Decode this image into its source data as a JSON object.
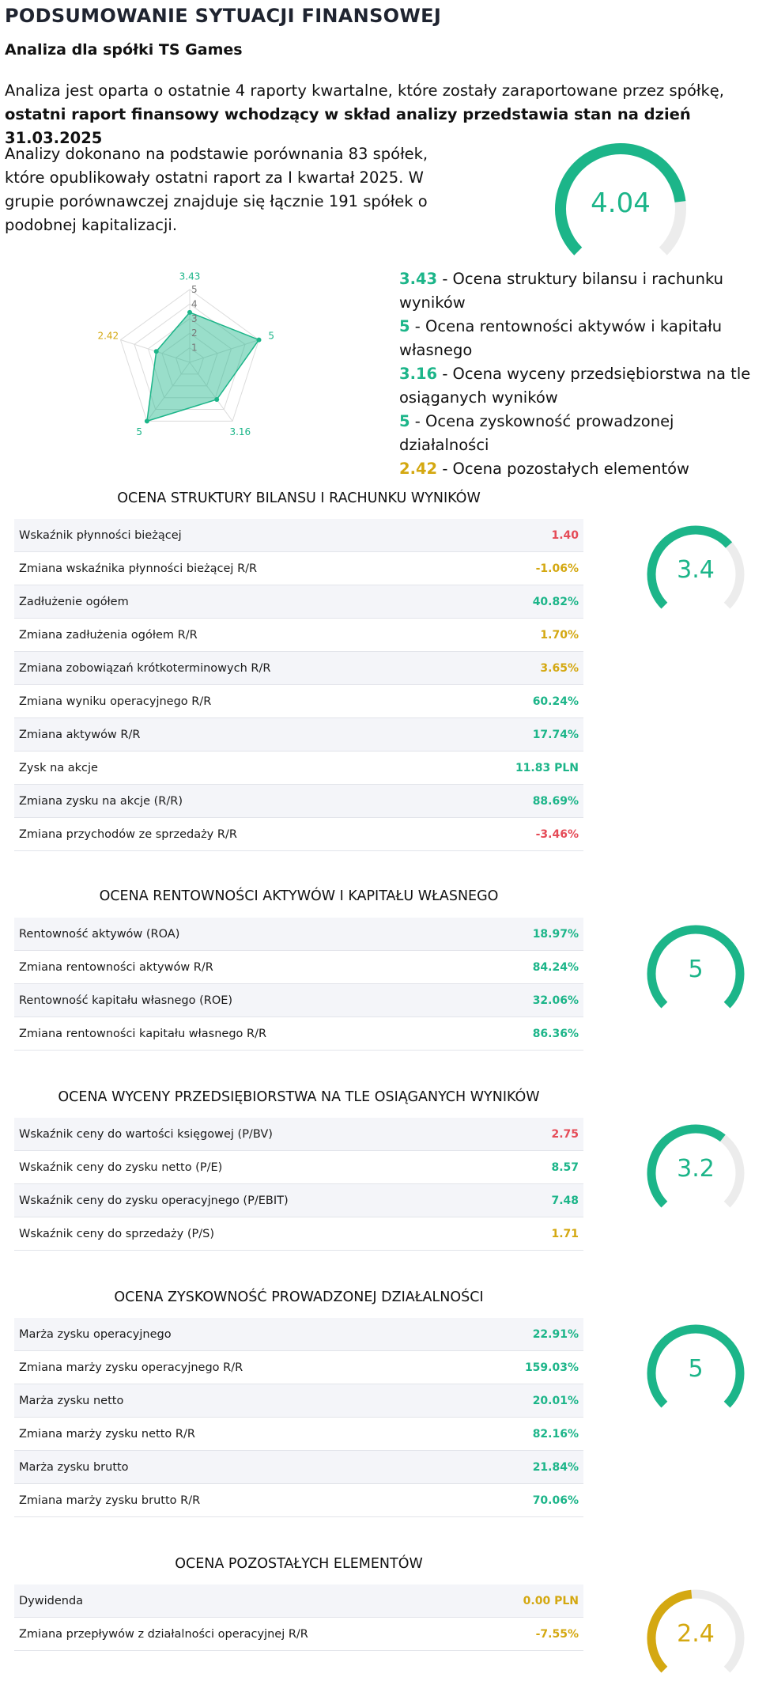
{
  "header": {
    "title": "PODSUMOWANIE SYTUACJI FINANSOWEJ",
    "subtitle": "Analiza dla spółki TS Games"
  },
  "intro": {
    "text_plain": "Analiza jest oparta o ostatnie 4 raporty kwartalne, które zostały zaraportowane przez spółkę, ",
    "text_bold": "ostatni raport finansowy wchodzący w skład analizy przedstawia stan na dzień 31.03.2025"
  },
  "basis_text": "Analizy dokonano na podstawie porównania 83 spółek, które opublikowały ostatni raport za I kwartał 2025. W grupie porównawczej znajduje się łącznie 191 spółek o podobnej kapitalizacji.",
  "overall": {
    "score_label": "4.04",
    "score": 4.04,
    "max": 5,
    "color": "#1cb589"
  },
  "radar": {
    "axis_ticks": [
      "1",
      "2",
      "3",
      "4",
      "5"
    ],
    "max": 5,
    "values": [
      3.43,
      5,
      3.16,
      5,
      2.42
    ],
    "labels": [
      "3.43",
      "5",
      "3.16",
      "5",
      "2.42"
    ],
    "label_colors": [
      "#1cb589",
      "#1cb589",
      "#1cb589",
      "#1cb589",
      "#d4a811"
    ],
    "fill": "#1cb589"
  },
  "legend": [
    {
      "value": "3.43",
      "text": " - Ocena struktury bilansu i rachunku wyników",
      "color": "#1cb589"
    },
    {
      "value": "5",
      "text": " - Ocena rentowności aktywów i kapitału własnego",
      "color": "#1cb589"
    },
    {
      "value": "3.16",
      "text": " - Ocena wyceny przedsiębiorstwa na tle osiąganych wyników",
      "color": "#1cb589"
    },
    {
      "value": "5",
      "text": " - Ocena zyskowność prowadzonej działalności",
      "color": "#1cb589"
    },
    {
      "value": "2.42",
      "text": " - Ocena pozostałych elementów",
      "color": "#d4a811"
    }
  ],
  "sections": [
    {
      "title": "OCENA STRUKTURY BILANSU I RACHUNKU WYNIKÓW",
      "score_label": "3.4",
      "score": 3.4,
      "color": "#1cb589",
      "rows": [
        {
          "label": "Wskaźnik płynności bieżącej",
          "value": "1.40",
          "color": "red"
        },
        {
          "label": "Zmiana wskaźnika płynności bieżącej R/R",
          "value": "-1.06%",
          "color": "yellow"
        },
        {
          "label": "Zadłużenie ogółem",
          "value": "40.82%",
          "color": "green"
        },
        {
          "label": "Zmiana zadłużenia ogółem R/R",
          "value": "1.70%",
          "color": "yellow"
        },
        {
          "label": "Zmiana zobowiązań krótkoterminowych R/R",
          "value": "3.65%",
          "color": "yellow"
        },
        {
          "label": "Zmiana wyniku operacyjnego R/R",
          "value": "60.24%",
          "color": "green"
        },
        {
          "label": "Zmiana aktywów R/R",
          "value": "17.74%",
          "color": "green"
        },
        {
          "label": "Zysk na akcje",
          "value": "11.83 PLN",
          "color": "green"
        },
        {
          "label": "Zmiana zysku na akcje (R/R)",
          "value": "88.69%",
          "color": "green"
        },
        {
          "label": "Zmiana przychodów ze sprzedaży R/R",
          "value": "-3.46%",
          "color": "red"
        }
      ]
    },
    {
      "title": "OCENA RENTOWNOŚCI AKTYWÓW I KAPITAŁU WŁASNEGO",
      "score_label": "5",
      "score": 5,
      "color": "#1cb589",
      "rows": [
        {
          "label": "Rentowność aktywów (ROA)",
          "value": "18.97%",
          "color": "green"
        },
        {
          "label": "Zmiana rentowności aktywów R/R",
          "value": "84.24%",
          "color": "green"
        },
        {
          "label": "Rentowność kapitału własnego (ROE)",
          "value": "32.06%",
          "color": "green"
        },
        {
          "label": "Zmiana rentowności kapitału własnego R/R",
          "value": "86.36%",
          "color": "green"
        }
      ]
    },
    {
      "title": "OCENA WYCENY PRZEDSIĘBIORSTWA NA TLE OSIĄGANYCH WYNIKÓW",
      "score_label": "3.2",
      "score": 3.2,
      "color": "#1cb589",
      "rows": [
        {
          "label": "Wskaźnik ceny do wartości księgowej (P/BV)",
          "value": "2.75",
          "color": "red"
        },
        {
          "label": "Wskaźnik ceny do zysku netto (P/E)",
          "value": "8.57",
          "color": "green"
        },
        {
          "label": "Wskaźnik ceny do zysku operacyjnego (P/EBIT)",
          "value": "7.48",
          "color": "green"
        },
        {
          "label": "Wskaźnik ceny do sprzedaży (P/S)",
          "value": "1.71",
          "color": "yellow"
        }
      ]
    },
    {
      "title": "OCENA ZYSKOWNOŚĆ PROWADZONEJ DZIAŁALNOŚCI",
      "score_label": "5",
      "score": 5,
      "color": "#1cb589",
      "rows": [
        {
          "label": "Marża zysku operacyjnego",
          "value": "22.91%",
          "color": "green"
        },
        {
          "label": "Zmiana marży zysku operacyjnego R/R",
          "value": "159.03%",
          "color": "green"
        },
        {
          "label": "Marża zysku netto",
          "value": "20.01%",
          "color": "green"
        },
        {
          "label": "Zmiana marży zysku netto R/R",
          "value": "82.16%",
          "color": "green"
        },
        {
          "label": "Marża zysku brutto",
          "value": "21.84%",
          "color": "green"
        },
        {
          "label": "Zmiana marży zysku brutto R/R",
          "value": "70.06%",
          "color": "green"
        }
      ]
    },
    {
      "title": "OCENA POZOSTAŁYCH ELEMENTÓW",
      "score_label": "2.4",
      "score": 2.4,
      "color": "#d4a811",
      "rows": [
        {
          "label": "Dywidenda",
          "value": "0.00 PLN",
          "color": "yellow"
        },
        {
          "label": "Zmiana przepływów z działalności operacyjnej R/R",
          "value": "-7.55%",
          "color": "yellow"
        }
      ]
    }
  ]
}
